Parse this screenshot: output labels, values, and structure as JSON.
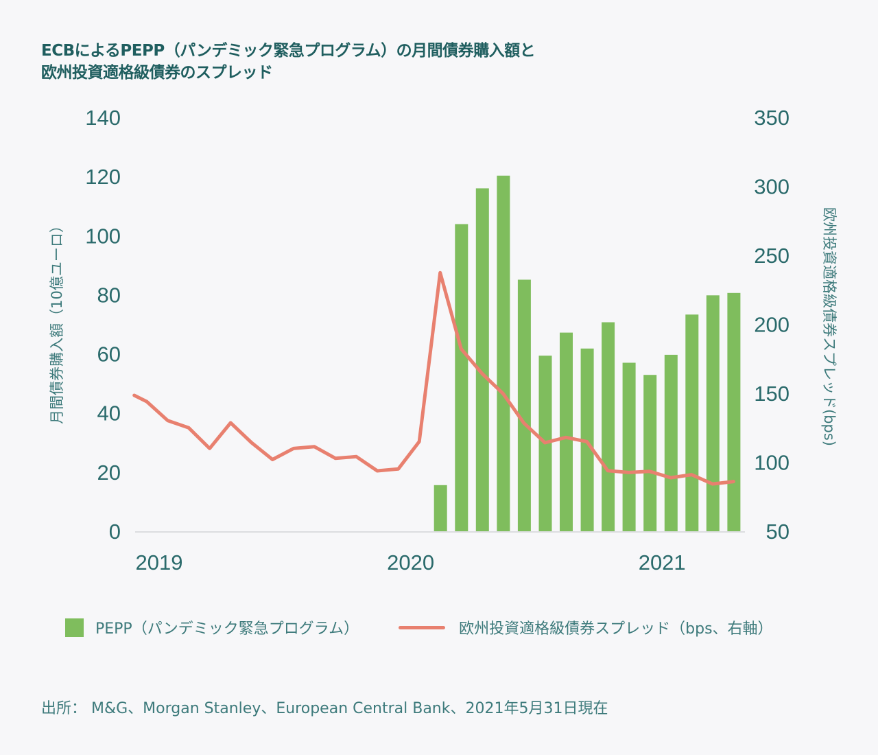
{
  "title": {
    "line1": "ECBによるPEPP（パンデミック緊急プログラム）の月間債券購入額と",
    "line2": "欧州投資適格級債券のスプレッド"
  },
  "legend": {
    "bar_label": "PEPP（パンデミック緊急プログラム）",
    "line_label": "欧州投資適格級債券スプレッド（bps、右軸）"
  },
  "source": "出所： M&G、Morgan Stanley、European Central Bank、2021年5月31日現在",
  "colors": {
    "bar": "#7fbd5d",
    "line": "#e8806f",
    "text": "#2a6a6b",
    "axis": "#dcdde0"
  },
  "chart_data": {
    "type": "bar+line",
    "title": "ECBによるPEPP（パンデミック緊急プログラム）の月間債券購入額と欧州投資適格級債券のスプレッド",
    "xlabel": "",
    "ylabel_left": "月間債券購入額（10億ユーロ）",
    "ylabel_right": "欧州投資適格級債券スプレッド(bps)",
    "ylim_left": [
      0,
      140
    ],
    "yticks_left": [
      0,
      20,
      40,
      60,
      80,
      100,
      120,
      140
    ],
    "ylim_right": [
      50,
      350
    ],
    "yticks_right": [
      50,
      100,
      150,
      200,
      250,
      300,
      350
    ],
    "xticks": [
      {
        "label": "2019",
        "month": "2019-01"
      },
      {
        "label": "2020",
        "month": "2020-01"
      },
      {
        "label": "2021",
        "month": "2021-01"
      }
    ],
    "x_range": [
      "2018-12",
      "2021-05"
    ],
    "grid": false,
    "legend_position": "bottom",
    "series": [
      {
        "name": "PEPP（パンデミック緊急プログラム）",
        "type": "bar",
        "axis": "left",
        "x": [
          "2020-03",
          "2020-04",
          "2020-05",
          "2020-06",
          "2020-07",
          "2020-08",
          "2020-09",
          "2020-10",
          "2020-11",
          "2020-12",
          "2021-01",
          "2021-02",
          "2021-03",
          "2021-04",
          "2021-05"
        ],
        "values": [
          15.6,
          103.9,
          116.0,
          120.3,
          85.1,
          59.4,
          67.2,
          61.8,
          70.7,
          57.0,
          52.9,
          59.7,
          73.3,
          79.8,
          80.6
        ]
      },
      {
        "name": "欧州投資適格級債券スプレッド（bps、右軸）",
        "type": "line",
        "axis": "right",
        "x": [
          -0.6,
          0,
          1,
          2,
          3,
          4,
          5,
          6,
          7,
          8,
          9,
          10,
          11,
          12,
          13,
          14,
          15,
          16,
          17,
          18,
          19,
          20,
          21,
          22,
          23,
          24,
          25,
          26,
          27,
          28
        ],
        "x_note": "month index from 2019-01 (0) to 2021-05 (28)",
        "values": [
          148.5,
          144.0,
          130.2,
          125.0,
          110.0,
          128.6,
          114.2,
          102.0,
          110.0,
          111.3,
          102.9,
          104.1,
          93.8,
          95.1,
          115.0,
          237.4,
          182.2,
          164.3,
          149.8,
          128.3,
          114.2,
          118.0,
          115.0,
          93.9,
          92.6,
          93.4,
          88.8,
          91.0,
          84.3,
          86.0
        ]
      }
    ]
  }
}
